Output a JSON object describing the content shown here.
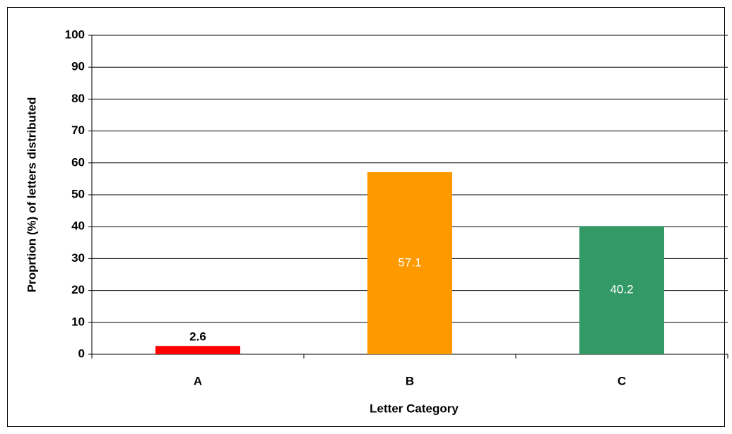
{
  "chart_data": {
    "type": "bar",
    "x_label": "Letter Category",
    "y_label": "Proprtion (%) of letters distributed",
    "categories": [
      "A",
      "B",
      "C"
    ],
    "values": [
      2.6,
      57.1,
      40.2
    ],
    "colors": [
      "#ff0000",
      "#ff9900",
      "#339966"
    ],
    "ylim": [
      0,
      100
    ],
    "yticks": [
      0,
      10,
      20,
      30,
      40,
      50,
      60,
      70,
      80,
      90,
      100
    ],
    "grid": true
  }
}
